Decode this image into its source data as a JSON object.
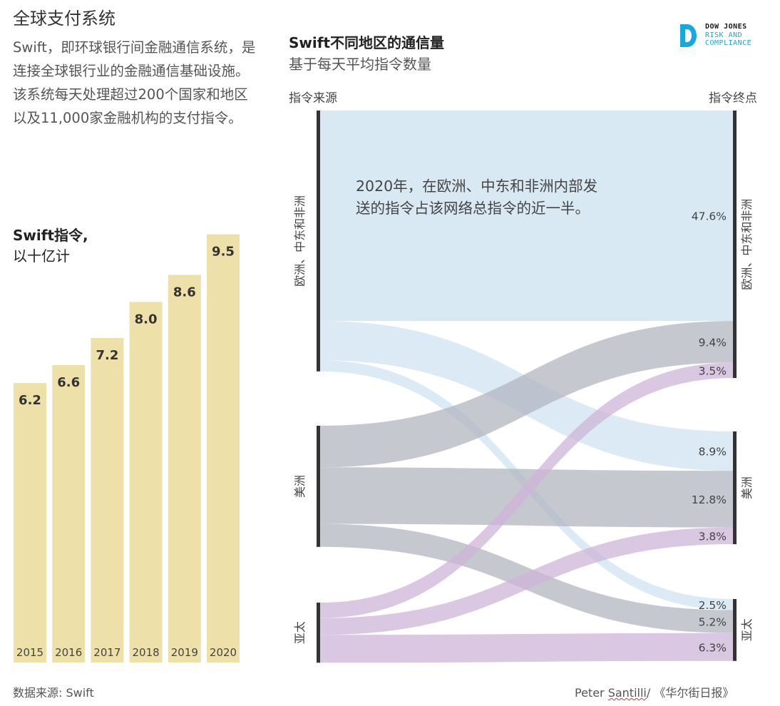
{
  "title": "全球支付系统",
  "intro": "Swift，即环球银行间金融通信系统，是连接全球银行业的金融通信基础设施。该系统每天处理超过200个国家和地区以及11,000家金融机构的支付指令。",
  "bar_title_line1": "Swift指令,",
  "bar_title_line2": "以十亿计",
  "source": "数据来源: Swift",
  "flow_title": "Swift不同地区的通信量",
  "flow_subtitle": "基于每天平均指令数量",
  "logo": {
    "line1": "DOW JONES",
    "line2": "RISK AND",
    "line3": "COMPLIANCE",
    "mark_color": "#19a7df"
  },
  "credit_prefix": "Peter ",
  "credit_name": "Santilli",
  "credit_suffix": "/ 《华尔街日报》",
  "colors": {
    "bar": "#ede0a8",
    "europe": "#cfe3f1",
    "americas": "#b3b6c0",
    "asia": "#cdb4d8",
    "axis": "#333333"
  },
  "chart_data": [
    {
      "type": "bar",
      "title": "Swift指令, 以十亿计",
      "categories": [
        "2015",
        "2016",
        "2017",
        "2018",
        "2019",
        "2020"
      ],
      "values": [
        6.2,
        6.6,
        7.2,
        8.0,
        8.6,
        9.5
      ]
    },
    {
      "type": "sankey",
      "title": "Swift不同地区的通信量",
      "subtitle": "基于每天平均指令数量",
      "source_header": "指令来源",
      "target_header": "指令终点",
      "sources": [
        "欧洲、中东和非洲",
        "美洲",
        "亚太"
      ],
      "targets": [
        "欧洲、中东和非洲",
        "美洲",
        "亚太"
      ],
      "annotation": "2020年，在欧洲、中东和非洲内部发送的指令占该网络总指令的近一半。",
      "flows": [
        {
          "from": "欧洲、中东和非洲",
          "to": "欧洲、中东和非洲",
          "value": 47.6,
          "label": "47.6%"
        },
        {
          "from": "欧洲、中东和非洲",
          "to": "美洲",
          "value": 8.9,
          "label": "8.9%"
        },
        {
          "from": "欧洲、中东和非洲",
          "to": "亚太",
          "value": 2.5,
          "label": "2.5%"
        },
        {
          "from": "美洲",
          "to": "欧洲、中东和非洲",
          "value": 9.4,
          "label": "9.4%"
        },
        {
          "from": "美洲",
          "to": "美洲",
          "value": 12.8,
          "label": "12.8%"
        },
        {
          "from": "美洲",
          "to": "亚太",
          "value": 5.2,
          "label": "5.2%"
        },
        {
          "from": "亚太",
          "to": "欧洲、中东和非洲",
          "value": 3.5,
          "label": "3.5%"
        },
        {
          "from": "亚太",
          "to": "美洲",
          "value": 3.8,
          "label": "3.8%"
        },
        {
          "from": "亚太",
          "to": "亚太",
          "value": 6.3,
          "label": "6.3%"
        }
      ]
    }
  ]
}
